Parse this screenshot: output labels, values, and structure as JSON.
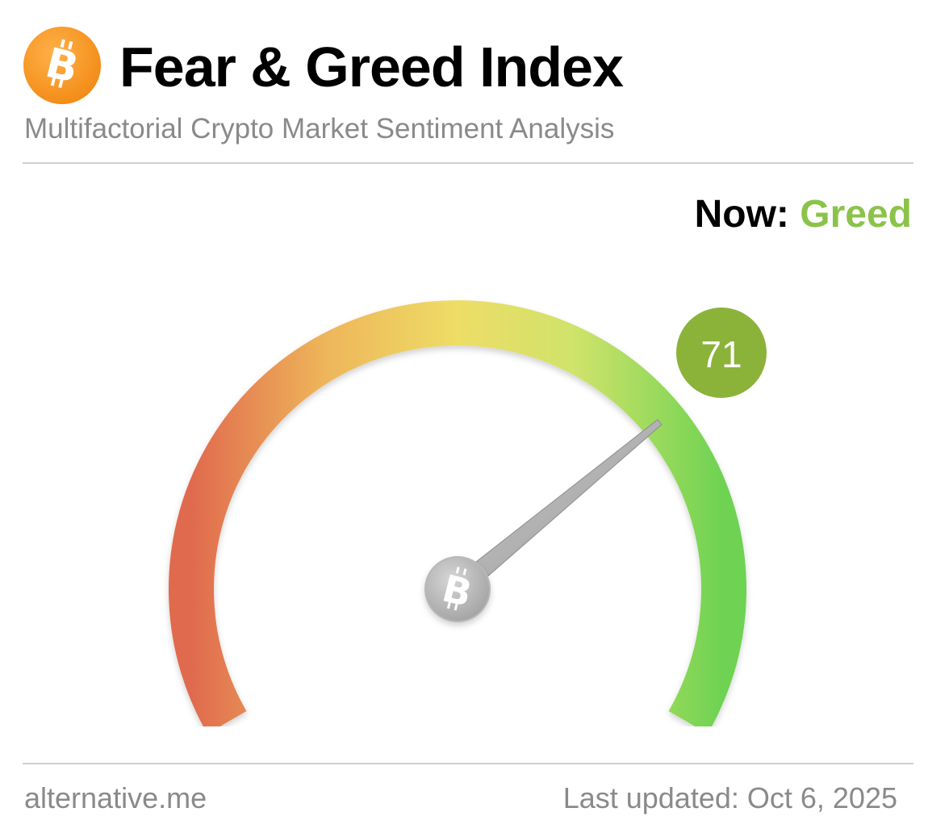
{
  "header": {
    "logo_icon": "bitcoin-icon",
    "title": "Fear & Greed Index",
    "subtitle": "Multifactorial Crypto Market Sentiment Analysis"
  },
  "status": {
    "label": "Now:",
    "value": "Greed",
    "value_color": "#8bc34a"
  },
  "gauge": {
    "value": 71,
    "display_value": "71",
    "min": 0,
    "max": 100,
    "badge_color": "#8bb33a",
    "center_icon": "bitcoin-icon",
    "gradient_colors": [
      "#e06a4e",
      "#eeb55a",
      "#eedd66",
      "#cfe36a",
      "#6ed252"
    ]
  },
  "footer": {
    "source": "alternative.me",
    "last_updated": "Last updated: Oct 6, 2025"
  },
  "colors": {
    "brand_orange": "#f7931a",
    "text_gray": "#8a8a8a"
  }
}
